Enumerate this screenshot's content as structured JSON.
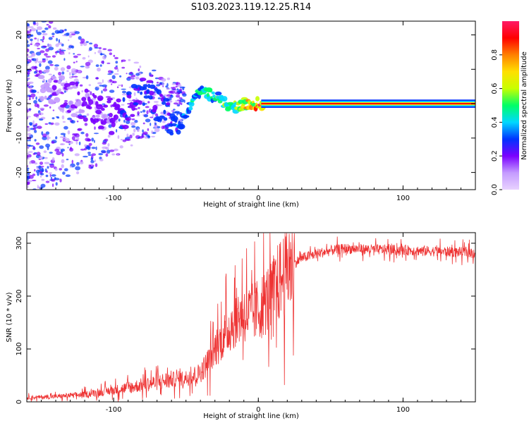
{
  "title": "S103.2023.119.12.25.R14",
  "chart_data": [
    {
      "type": "heatmap",
      "xlabel": "Height of straight line (km)",
      "ylabel": "Frequency (Hz)",
      "xlim": [
        -160,
        150
      ],
      "ylim": [
        -25,
        24
      ],
      "x_ticks": [
        -100,
        0,
        100
      ],
      "y_ticks": [
        -20,
        -10,
        0,
        10,
        20
      ],
      "colorbar": {
        "label": "Normalized spectral amplitude",
        "range": [
          0,
          1
        ],
        "ticks": [
          "0.0",
          "0.2",
          "0.4",
          "0.6",
          "0.8"
        ],
        "colors": [
          "#e8d2ff",
          "#c49bff",
          "#7a00ff",
          "#0033ff",
          "#00d8ff",
          "#00ff66",
          "#c8ff00",
          "#ffe000",
          "#ff8000",
          "#ff0000",
          "#ff1a66"
        ]
      },
      "ridge": {
        "x": [
          -160,
          -140,
          -120,
          -100,
          -90,
          -80,
          -70,
          -60,
          -55,
          -50,
          -45,
          -40,
          -35,
          -30,
          -25,
          -20,
          -15,
          -10,
          -5,
          0,
          5,
          50,
          100,
          150
        ],
        "freq": [
          8,
          4,
          0,
          -4,
          -2,
          4,
          0,
          -4,
          -7,
          -3,
          1,
          4,
          3,
          2,
          1,
          -1,
          -1,
          0,
          0,
          0,
          0,
          0,
          0,
          0
        ],
        "amplitude": [
          0.12,
          0.15,
          0.18,
          0.25,
          0.25,
          0.3,
          0.35,
          0.3,
          0.35,
          0.4,
          0.45,
          0.45,
          0.5,
          0.5,
          0.55,
          0.55,
          0.6,
          0.7,
          0.75,
          0.9,
          0.95,
          0.95,
          0.95,
          0.95
        ]
      }
    },
    {
      "type": "line",
      "xlabel": "Height of straight line (km)",
      "ylabel": "SNR (10 * v/v)",
      "xlim": [
        -160,
        150
      ],
      "ylim": [
        0,
        320
      ],
      "x_ticks": [
        -100,
        0,
        100
      ],
      "y_ticks": [
        0,
        100,
        200,
        300
      ],
      "color": "#ee3333",
      "series": [
        {
          "x": [
            -160,
            -140,
            -120,
            -100,
            -80,
            -60,
            -50,
            -40,
            -35,
            -30,
            -25,
            -20,
            -15,
            -10,
            -5,
            0,
            5,
            10,
            15,
            20,
            25,
            30,
            40,
            50,
            60,
            80,
            100,
            120,
            150
          ],
          "y": [
            8,
            10,
            14,
            22,
            32,
            42,
            45,
            55,
            75,
            100,
            120,
            140,
            160,
            170,
            165,
            175,
            190,
            205,
            230,
            250,
            262,
            272,
            280,
            286,
            290,
            288,
            287,
            285,
            282
          ]
        }
      ]
    }
  ]
}
